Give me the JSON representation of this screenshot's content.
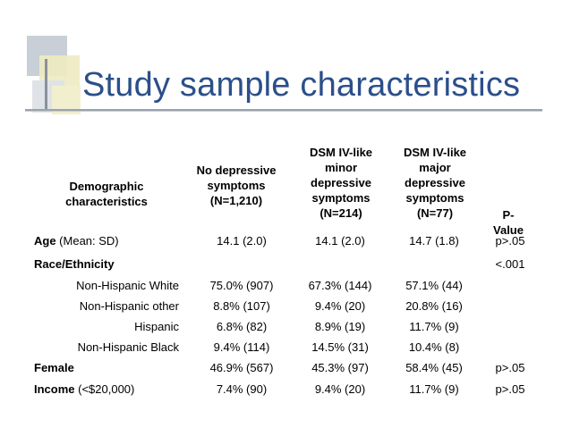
{
  "slide": {
    "title": "Study sample characteristics"
  },
  "table": {
    "headers": [
      "Demographic characteristics",
      "No depressive symptoms (N=1,210)",
      "DSM IV-like minor depressive symptoms (N=214)",
      "DSM IV-like major depressive symptoms (N=77)",
      "P-Value"
    ],
    "rows": [
      {
        "label_bold": "Age",
        "label_rest": " (Mean: SD)",
        "c1": "14.1 (2.0)",
        "c2": "14.1 (2.0)",
        "c3": "14.7 (1.8)",
        "c4": "p>.05"
      },
      {
        "label_bold": "Race/Ethnicity",
        "label_rest": "",
        "c1": "",
        "c2": "",
        "c3": "",
        "c4": "<.001"
      },
      {
        "sublabel": "Non-Hispanic White",
        "c1": "75.0% (907)",
        "c2": "67.3% (144)",
        "c3": "57.1% (44)",
        "c4": ""
      },
      {
        "sublabel": "Non-Hispanic other",
        "c1": "8.8% (107)",
        "c2": "9.4% (20)",
        "c3": "20.8% (16)",
        "c4": ""
      },
      {
        "sublabel": "Hispanic",
        "c1": "6.8% (82)",
        "c2": "8.9% (19)",
        "c3": "11.7% (9)",
        "c4": ""
      },
      {
        "sublabel": "Non-Hispanic Black",
        "c1": "9.4% (114)",
        "c2": "14.5% (31)",
        "c3": "10.4% (8)",
        "c4": ""
      },
      {
        "label_bold": "Female",
        "label_rest": "",
        "c1": "46.9% (567)",
        "c2": "45.3% (97)",
        "c3": "58.4% (45)",
        "c4": "p>.05"
      },
      {
        "label_bold": "Income",
        "label_rest": " (<$20,000)",
        "c1": "7.4% (90)",
        "c2": "9.4% (20)",
        "c3": "11.7% (9)",
        "c4": "p>.05"
      }
    ]
  }
}
